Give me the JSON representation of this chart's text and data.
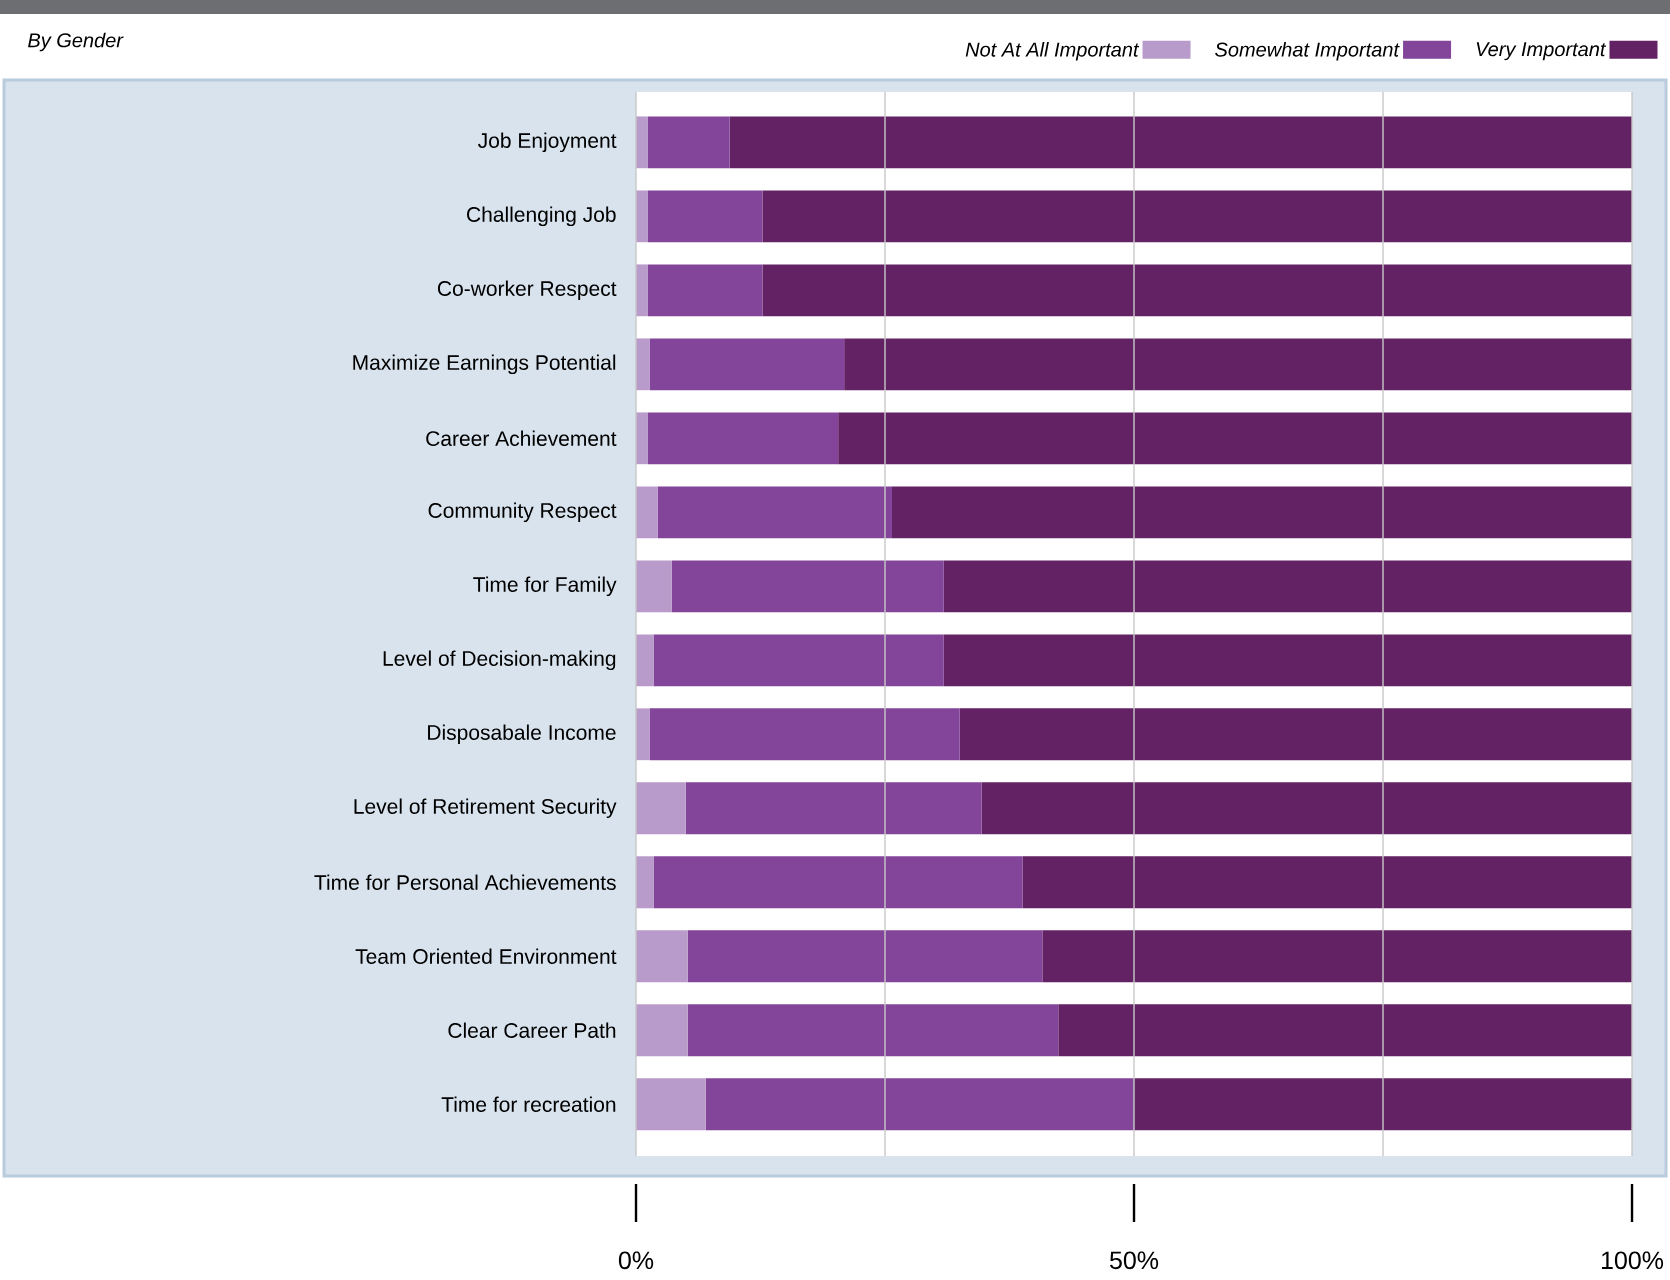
{
  "chart_data": {
    "type": "bar",
    "title": "By Gender",
    "orientation": "horizontal",
    "stacked": true,
    "categories": [
      "Job Enjoyment",
      "Challenging Job",
      "Co-worker Respect",
      "Maximize Earnings Potential",
      "Career Achievement",
      "Community Respect",
      "Time for Family",
      "Level of Decision-making",
      "Disposabale Income",
      "Level of Retirement Security",
      "Time for Personal Achievements",
      "Team Oriented Environment",
      "Clear Career Path",
      "Time for recreation"
    ],
    "series": [
      {
        "name": "Not At All Important",
        "color": "#b99bcb",
        "values": [
          1.2,
          1.2,
          1.2,
          1.4,
          1.2,
          2.2,
          3.6,
          1.8,
          1.4,
          5.0,
          1.8,
          5.2,
          5.2,
          7.0
        ]
      },
      {
        "name": "Somewhat Important",
        "color": "#834599",
        "values": [
          8.2,
          11.5,
          11.5,
          19.5,
          19.1,
          23.5,
          27.3,
          29.1,
          31.1,
          29.7,
          37.0,
          35.6,
          37.2,
          43.0
        ]
      },
      {
        "name": "Very Important",
        "color": "#632263",
        "values": [
          90.6,
          87.3,
          87.3,
          79.1,
          79.7,
          74.3,
          69.1,
          69.1,
          67.5,
          65.3,
          61.2,
          59.2,
          57.6,
          50.0
        ]
      }
    ],
    "xlim": [
      0,
      100
    ],
    "xticks": [
      {
        "value": 0,
        "label": "0%"
      },
      {
        "value": 25,
        "label": null
      },
      {
        "value": 50,
        "label": "50%"
      },
      {
        "value": 75,
        "label": null
      },
      {
        "value": 100,
        "label": "100%"
      }
    ],
    "grid": "x",
    "legend": "top right"
  }
}
